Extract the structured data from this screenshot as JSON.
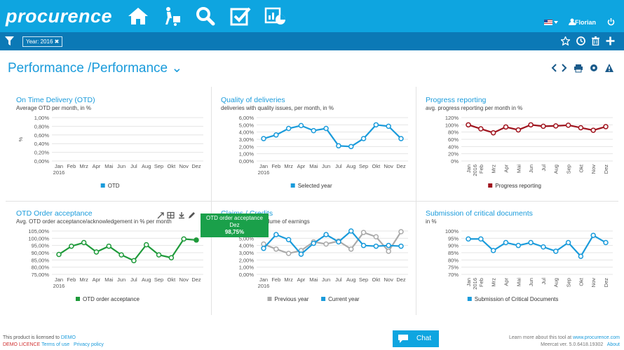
{
  "app": {
    "logo": "procurence",
    "user": "Florian"
  },
  "filter": {
    "tag": "Year: 2016 ✖"
  },
  "page": {
    "title": "Performance /Performance ⌄"
  },
  "months": [
    "Jan",
    "Feb",
    "Mrz",
    "Apr",
    "Mai",
    "Jun",
    "Jul",
    "Aug",
    "Sep",
    "Okt",
    "Nov",
    "Dez"
  ],
  "year_label": "2016",
  "panels": {
    "otd": {
      "title": "On Time Delivery (OTD)",
      "subtitle": "Average OTD per month, in %",
      "ylabel": "%",
      "legend": "OTD"
    },
    "quality": {
      "title": "Quality of deliveries",
      "subtitle": "deliveries with quality issues, per month, in %",
      "legend": "Selected year"
    },
    "progress": {
      "title": "Progress reporting",
      "subtitle": "avg. progress reporting per month in %",
      "legend": "Progress reporting"
    },
    "acceptance": {
      "title": "OTD Order acceptance",
      "subtitle": "Avg. OTD order acceptance/acknowledgement in % per month",
      "legend": "OTD order acceptance"
    },
    "claims": {
      "title": "Claims / Credits",
      "subtitle": "in relation to the volume of earnings",
      "legend1": "Previous year",
      "legend2": "Current year"
    },
    "critical": {
      "title": "Submission of critical documents",
      "subtitle": "in %",
      "legend": "Submission of Critical Documents"
    }
  },
  "tooltip": {
    "line1": "OTD order acceptance",
    "line2": "Dez",
    "line3": "98,75%"
  },
  "footer": {
    "licensed": "This product is licensed to",
    "demo": "DEMO",
    "licence": "DEMO LICENCE",
    "terms": "Terms of use",
    "privacy": "Privacy policy",
    "learn": "Learn more about this tool at",
    "site": "www.procurence.com",
    "version": "Meercat ver. 5.0.6418.19302",
    "about": "About"
  },
  "chat_label": "Chat",
  "colors": {
    "blue": "#1a9bdb",
    "green": "#1e9a3a",
    "darkred": "#a0141e",
    "gray": "#aaaaaa",
    "header": "#0ea5e0",
    "filterbar": "#0b79b6"
  },
  "chart_data": [
    {
      "type": "line",
      "title": "On Time Delivery (OTD)",
      "categories": [
        "Jan",
        "Feb",
        "Mrz",
        "Apr",
        "Mai",
        "Jun",
        "Jul",
        "Aug",
        "Sep",
        "Okt",
        "Nov",
        "Dez"
      ],
      "yticks": [
        "0,00%",
        "0,20%",
        "0,40%",
        "0,60%",
        "0,80%",
        "1,00%"
      ],
      "ylim": [
        0,
        1
      ],
      "series": []
    },
    {
      "type": "line",
      "title": "Quality of deliveries",
      "categories": [
        "Jan",
        "Feb",
        "Mrz",
        "Apr",
        "Mai",
        "Jun",
        "Jul",
        "Aug",
        "Sep",
        "Okt",
        "Nov",
        "Dez"
      ],
      "yticks": [
        "0,00%",
        "1,00%",
        "2,00%",
        "3,00%",
        "4,00%",
        "5,00%",
        "6,00%"
      ],
      "ylim": [
        0,
        6
      ],
      "series": [
        {
          "name": "Selected year",
          "values": [
            3.1,
            3.6,
            4.5,
            4.9,
            4.2,
            4.5,
            2.1,
            2.0,
            3.1,
            5.0,
            4.8,
            3.1
          ]
        }
      ]
    },
    {
      "type": "line",
      "title": "Progress reporting",
      "categories": [
        "Jan",
        "Feb",
        "Mrz",
        "Apr",
        "Mai",
        "Jun",
        "Jul",
        "Aug",
        "Sep",
        "Okt",
        "Nov",
        "Dez"
      ],
      "yticks": [
        "0%",
        "20%",
        "40%",
        "60%",
        "80%",
        "100%",
        "120%"
      ],
      "ylim": [
        0,
        120
      ],
      "series": [
        {
          "name": "Progress reporting",
          "values": [
            100,
            89,
            78,
            94,
            86,
            100,
            96,
            97,
            99,
            92,
            85,
            95
          ]
        }
      ]
    },
    {
      "type": "line",
      "title": "OTD Order acceptance",
      "categories": [
        "Jan",
        "Feb",
        "Mrz",
        "Apr",
        "Mai",
        "Jun",
        "Jul",
        "Aug",
        "Sep",
        "Okt",
        "Nov",
        "Dez"
      ],
      "yticks": [
        "75,00%",
        "80,00%",
        "85,00%",
        "90,00%",
        "95,00%",
        "100,00%",
        "105,00%"
      ],
      "ylim": [
        75,
        105
      ],
      "series": [
        {
          "name": "OTD order acceptance",
          "values": [
            88.8,
            94.5,
            97.0,
            90.5,
            94.5,
            88.5,
            84.5,
            95.5,
            88.5,
            86.5,
            99.5,
            98.75
          ]
        }
      ]
    },
    {
      "type": "line",
      "title": "Claims / Credits",
      "categories": [
        "Jan",
        "Feb",
        "Mrz",
        "Apr",
        "Mai",
        "Jun",
        "Jul",
        "Aug",
        "Sep",
        "Okt",
        "Nov",
        "Dez"
      ],
      "yticks": [
        "0,00%",
        "1,00%",
        "2,00%",
        "3,00%",
        "4,00%",
        "5,00%",
        "6,00%"
      ],
      "ylim": [
        0,
        6
      ],
      "series": [
        {
          "name": "Previous year",
          "values": [
            4.2,
            3.5,
            2.9,
            3.3,
            4.5,
            4.2,
            4.6,
            3.5,
            5.8,
            5.2,
            3.2,
            5.9
          ]
        },
        {
          "name": "Current year",
          "values": [
            3.6,
            5.5,
            4.8,
            2.8,
            4.3,
            5.5,
            4.5,
            6.0,
            4.0,
            3.9,
            4.0,
            3.9
          ]
        }
      ]
    },
    {
      "type": "line",
      "title": "Submission of critical documents",
      "categories": [
        "Jan",
        "Feb",
        "Mrz",
        "Apr",
        "Mai",
        "Jun",
        "Jul",
        "Aug",
        "Sep",
        "Okt",
        "Nov",
        "Dez"
      ],
      "yticks": [
        "70%",
        "75%",
        "80%",
        "85%",
        "90%",
        "95%",
        "100%"
      ],
      "ylim": [
        70,
        100
      ],
      "series": [
        {
          "name": "Submission of Critical Documents",
          "values": [
            94.5,
            94.5,
            86.5,
            92.0,
            90.0,
            92.0,
            89.0,
            86.0,
            92.0,
            82.5,
            97.0,
            92.0
          ]
        }
      ]
    }
  ]
}
